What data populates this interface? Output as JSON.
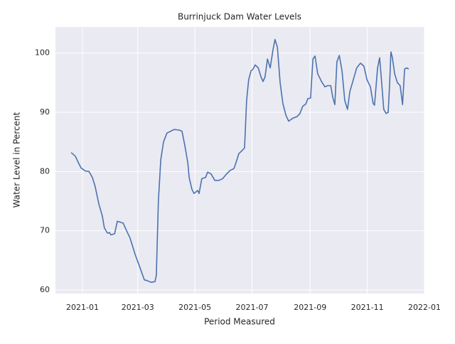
{
  "chart_data": {
    "type": "line",
    "title": "Burrinjuck Dam Water Levels",
    "x_label": "Period Measured",
    "y_label": "Water Level in Percent",
    "color": "#4c72b0",
    "grid": true,
    "xlim": [
      2020.921,
      2022.0
    ],
    "ylim": [
      59.4,
      104.4
    ],
    "xticks": [
      {
        "value": 2021.0,
        "label": "2021-01"
      },
      {
        "value": 2021.1616,
        "label": "2021-03"
      },
      {
        "value": 2021.3288,
        "label": "2021-05"
      },
      {
        "value": 2021.4959,
        "label": "2021-07"
      },
      {
        "value": 2021.6658,
        "label": "2021-09"
      },
      {
        "value": 2021.8329,
        "label": "2021-11"
      },
      {
        "value": 2022.0,
        "label": "2022-01"
      }
    ],
    "yticks": [
      60,
      70,
      80,
      90,
      100
    ],
    "x": [
      2020.967,
      2020.979,
      2020.988,
      2020.996,
      2021.008,
      2021.019,
      2021.029,
      2021.037,
      2021.048,
      2021.058,
      2021.064,
      2021.073,
      2021.079,
      2021.083,
      2021.094,
      2021.102,
      2021.119,
      2021.129,
      2021.139,
      2021.154,
      2021.168,
      2021.181,
      2021.189,
      2021.2,
      2021.212,
      2021.216,
      2021.222,
      2021.229,
      2021.237,
      2021.247,
      2021.258,
      2021.268,
      2021.283,
      2021.291,
      2021.299,
      2021.308,
      2021.312,
      2021.32,
      2021.326,
      2021.337,
      2021.341,
      2021.349,
      2021.36,
      2021.366,
      2021.376,
      2021.387,
      2021.399,
      2021.41,
      2021.42,
      2021.432,
      2021.443,
      2021.449,
      2021.457,
      2021.466,
      2021.474,
      2021.48,
      2021.486,
      2021.493,
      2021.499,
      2021.505,
      2021.514,
      2021.522,
      2021.528,
      2021.534,
      2021.541,
      2021.549,
      2021.557,
      2021.563,
      2021.57,
      2021.578,
      2021.586,
      2021.595,
      2021.603,
      2021.615,
      2021.628,
      2021.636,
      2021.644,
      2021.653,
      2021.659,
      2021.667,
      2021.674,
      2021.68,
      2021.688,
      2021.699,
      2021.709,
      2021.717,
      2021.726,
      2021.732,
      2021.738,
      2021.744,
      2021.751,
      2021.759,
      2021.767,
      2021.775,
      2021.782,
      2021.792,
      2021.802,
      2021.813,
      2021.823,
      2021.832,
      2021.842,
      2021.85,
      2021.854,
      2021.863,
      2021.869,
      2021.875,
      2021.881,
      2021.888,
      2021.894,
      2021.898,
      2021.902,
      2021.906,
      2021.913,
      2021.921,
      2021.929,
      2021.936,
      2021.942,
      2021.948,
      2021.954
    ],
    "values": [
      83.2,
      82.6,
      81.5,
      80.6,
      80.1,
      80.0,
      79.0,
      77.5,
      74.5,
      72.5,
      70.5,
      69.6,
      69.7,
      69.3,
      69.5,
      71.6,
      71.3,
      70.0,
      68.8,
      66.0,
      63.8,
      61.7,
      61.6,
      61.3,
      61.4,
      62.5,
      75.0,
      82.0,
      85.0,
      86.5,
      86.8,
      87.1,
      87.0,
      86.8,
      84.5,
      81.5,
      79.0,
      77.0,
      76.3,
      76.8,
      76.3,
      78.8,
      79.0,
      79.9,
      79.6,
      78.5,
      78.5,
      78.8,
      79.5,
      80.2,
      80.5,
      81.5,
      83.0,
      83.5,
      84.0,
      92.0,
      95.5,
      97.0,
      97.3,
      98.0,
      97.5,
      96.0,
      95.2,
      96.0,
      99.0,
      97.5,
      100.5,
      102.3,
      101.0,
      95.0,
      91.5,
      89.5,
      88.5,
      89.0,
      89.3,
      89.8,
      91.0,
      91.4,
      92.3,
      92.4,
      99.0,
      99.5,
      96.5,
      95.2,
      94.3,
      94.5,
      94.5,
      92.5,
      91.3,
      98.5,
      99.6,
      97.0,
      92.0,
      90.5,
      93.5,
      95.5,
      97.5,
      98.3,
      97.8,
      95.5,
      94.3,
      91.5,
      91.2,
      97.5,
      99.2,
      95.0,
      90.5,
      89.8,
      90.0,
      94.5,
      100.2,
      99.3,
      96.5,
      95.0,
      94.5,
      91.3,
      97.3,
      97.5,
      97.3
    ]
  }
}
